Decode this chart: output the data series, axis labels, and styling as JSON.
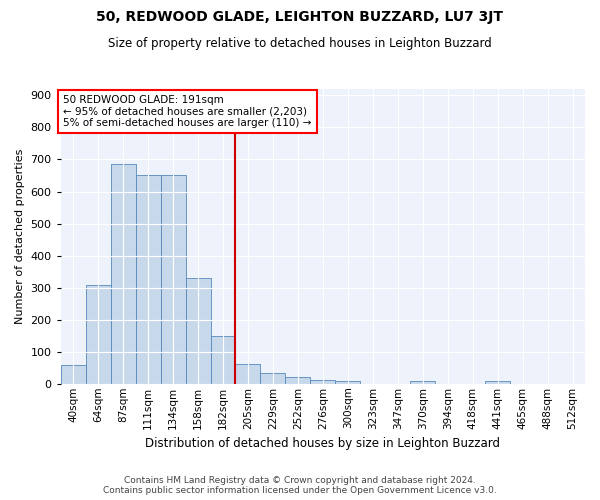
{
  "title": "50, REDWOOD GLADE, LEIGHTON BUZZARD, LU7 3JT",
  "subtitle": "Size of property relative to detached houses in Leighton Buzzard",
  "xlabel": "Distribution of detached houses by size in Leighton Buzzard",
  "ylabel": "Number of detached properties",
  "footer_line1": "Contains HM Land Registry data © Crown copyright and database right 2024.",
  "footer_line2": "Contains public sector information licensed under the Open Government Licence v3.0.",
  "annotation_line1": "50 REDWOOD GLADE: 191sqm",
  "annotation_line2": "← 95% of detached houses are smaller (2,203)",
  "annotation_line3": "5% of semi-detached houses are larger (110) →",
  "vline_color": "#cc0000",
  "bar_color": "#c8d8eb",
  "bar_edge_color": "#5588bb",
  "background_color": "#eef2fa",
  "categories": [
    "40sqm",
    "64sqm",
    "87sqm",
    "111sqm",
    "134sqm",
    "158sqm",
    "182sqm",
    "205sqm",
    "229sqm",
    "252sqm",
    "276sqm",
    "300sqm",
    "323sqm",
    "347sqm",
    "370sqm",
    "394sqm",
    "418sqm",
    "441sqm",
    "465sqm",
    "488sqm",
    "512sqm"
  ],
  "bar_values": [
    60,
    308,
    685,
    652,
    652,
    330,
    150,
    63,
    33,
    20,
    12,
    10,
    0,
    0,
    10,
    0,
    0,
    8,
    0,
    0,
    0
  ],
  "ylim": [
    0,
    920
  ],
  "yticks": [
    0,
    100,
    200,
    300,
    400,
    500,
    600,
    700,
    800,
    900
  ],
  "vline_index": 7,
  "figwidth": 6.0,
  "figheight": 5.0,
  "dpi": 100
}
